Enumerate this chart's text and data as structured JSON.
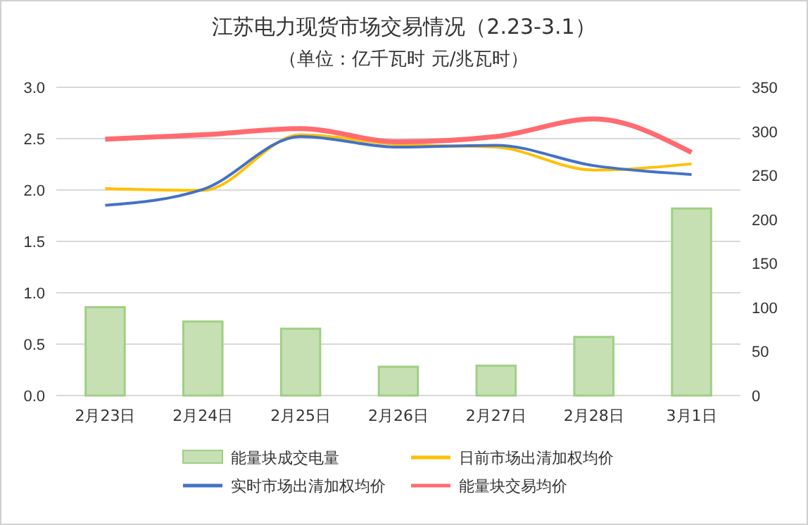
{
  "chart_data": {
    "type": "bar",
    "title": "江苏电力现货市场交易情况（2.23-3.1）",
    "subtitle": "（单位：亿千瓦时 元/兆瓦时）",
    "categories": [
      "2月23日",
      "2月24日",
      "2月25日",
      "2月26日",
      "2月27日",
      "2月28日",
      "3月1日"
    ],
    "series": [
      {
        "name": "能量块成交电量",
        "color": "#c6e0b4",
        "values": [
          0.86,
          0.72,
          0.65,
          0.28,
          0.29,
          0.57,
          1.82
        ]
      },
      {
        "name": "日前市场出清加权均价",
        "type": "line",
        "axis": "y2",
        "color": "#ffc000",
        "values": [
          235,
          233,
          296,
          285,
          282,
          256,
          263
        ]
      },
      {
        "name": "实时市场出清加权均价",
        "type": "line",
        "axis": "y2",
        "color": "#4472c4",
        "values": [
          216,
          234,
          294,
          282,
          284,
          261,
          251
        ]
      },
      {
        "name": "能量块交易均价",
        "type": "line",
        "axis": "y2",
        "color": "#ff6b70",
        "values": [
          291,
          296,
          303,
          288,
          294,
          314,
          276
        ]
      }
    ],
    "ylim": [
      0,
      3
    ],
    "yticks": [
      {
        "value": 0,
        "label": "0.0"
      },
      {
        "value": 0.5,
        "label": "0.5"
      },
      {
        "value": 1,
        "label": "1.0"
      },
      {
        "value": 1.5,
        "label": "1.5"
      },
      {
        "value": 2,
        "label": "2.0"
      },
      {
        "value": 2.5,
        "label": "2.5"
      },
      {
        "value": 3,
        "label": "3.0"
      }
    ],
    "y2lim": [
      0,
      350
    ],
    "y2ticks": [
      0,
      50,
      100,
      150,
      200,
      250,
      300,
      350
    ],
    "grid": "y",
    "legend": "bottom",
    "marker": "none",
    "line_style": "solid"
  }
}
